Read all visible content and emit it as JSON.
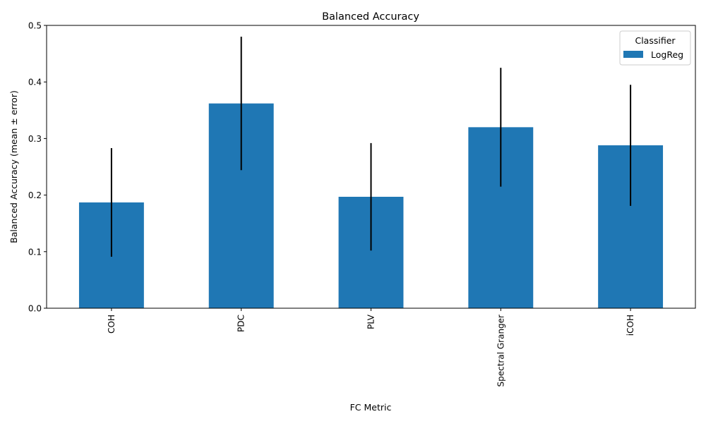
{
  "chart_data": {
    "type": "bar",
    "title": "Balanced Accuracy",
    "xlabel": "FC Metric",
    "ylabel": "Balanced Accuracy (mean ± error)",
    "categories": [
      "COH",
      "PDC",
      "PLV",
      "Spectral Granger",
      "iCOH"
    ],
    "series": [
      {
        "name": "LogReg",
        "values": [
          0.187,
          0.362,
          0.197,
          0.32,
          0.288
        ],
        "error": [
          0.096,
          0.118,
          0.095,
          0.105,
          0.107
        ],
        "color": "#1f77b4"
      }
    ],
    "ylim": [
      0,
      0.5
    ],
    "yticks": [
      0.0,
      0.1,
      0.2,
      0.3,
      0.4,
      0.5
    ],
    "ytick_labels": [
      "0.0",
      "0.1",
      "0.2",
      "0.3",
      "0.4",
      "0.5"
    ],
    "grid": false,
    "legend": {
      "title": "Classifier",
      "placement": "top-right"
    },
    "error_bar_color": "#000000"
  }
}
